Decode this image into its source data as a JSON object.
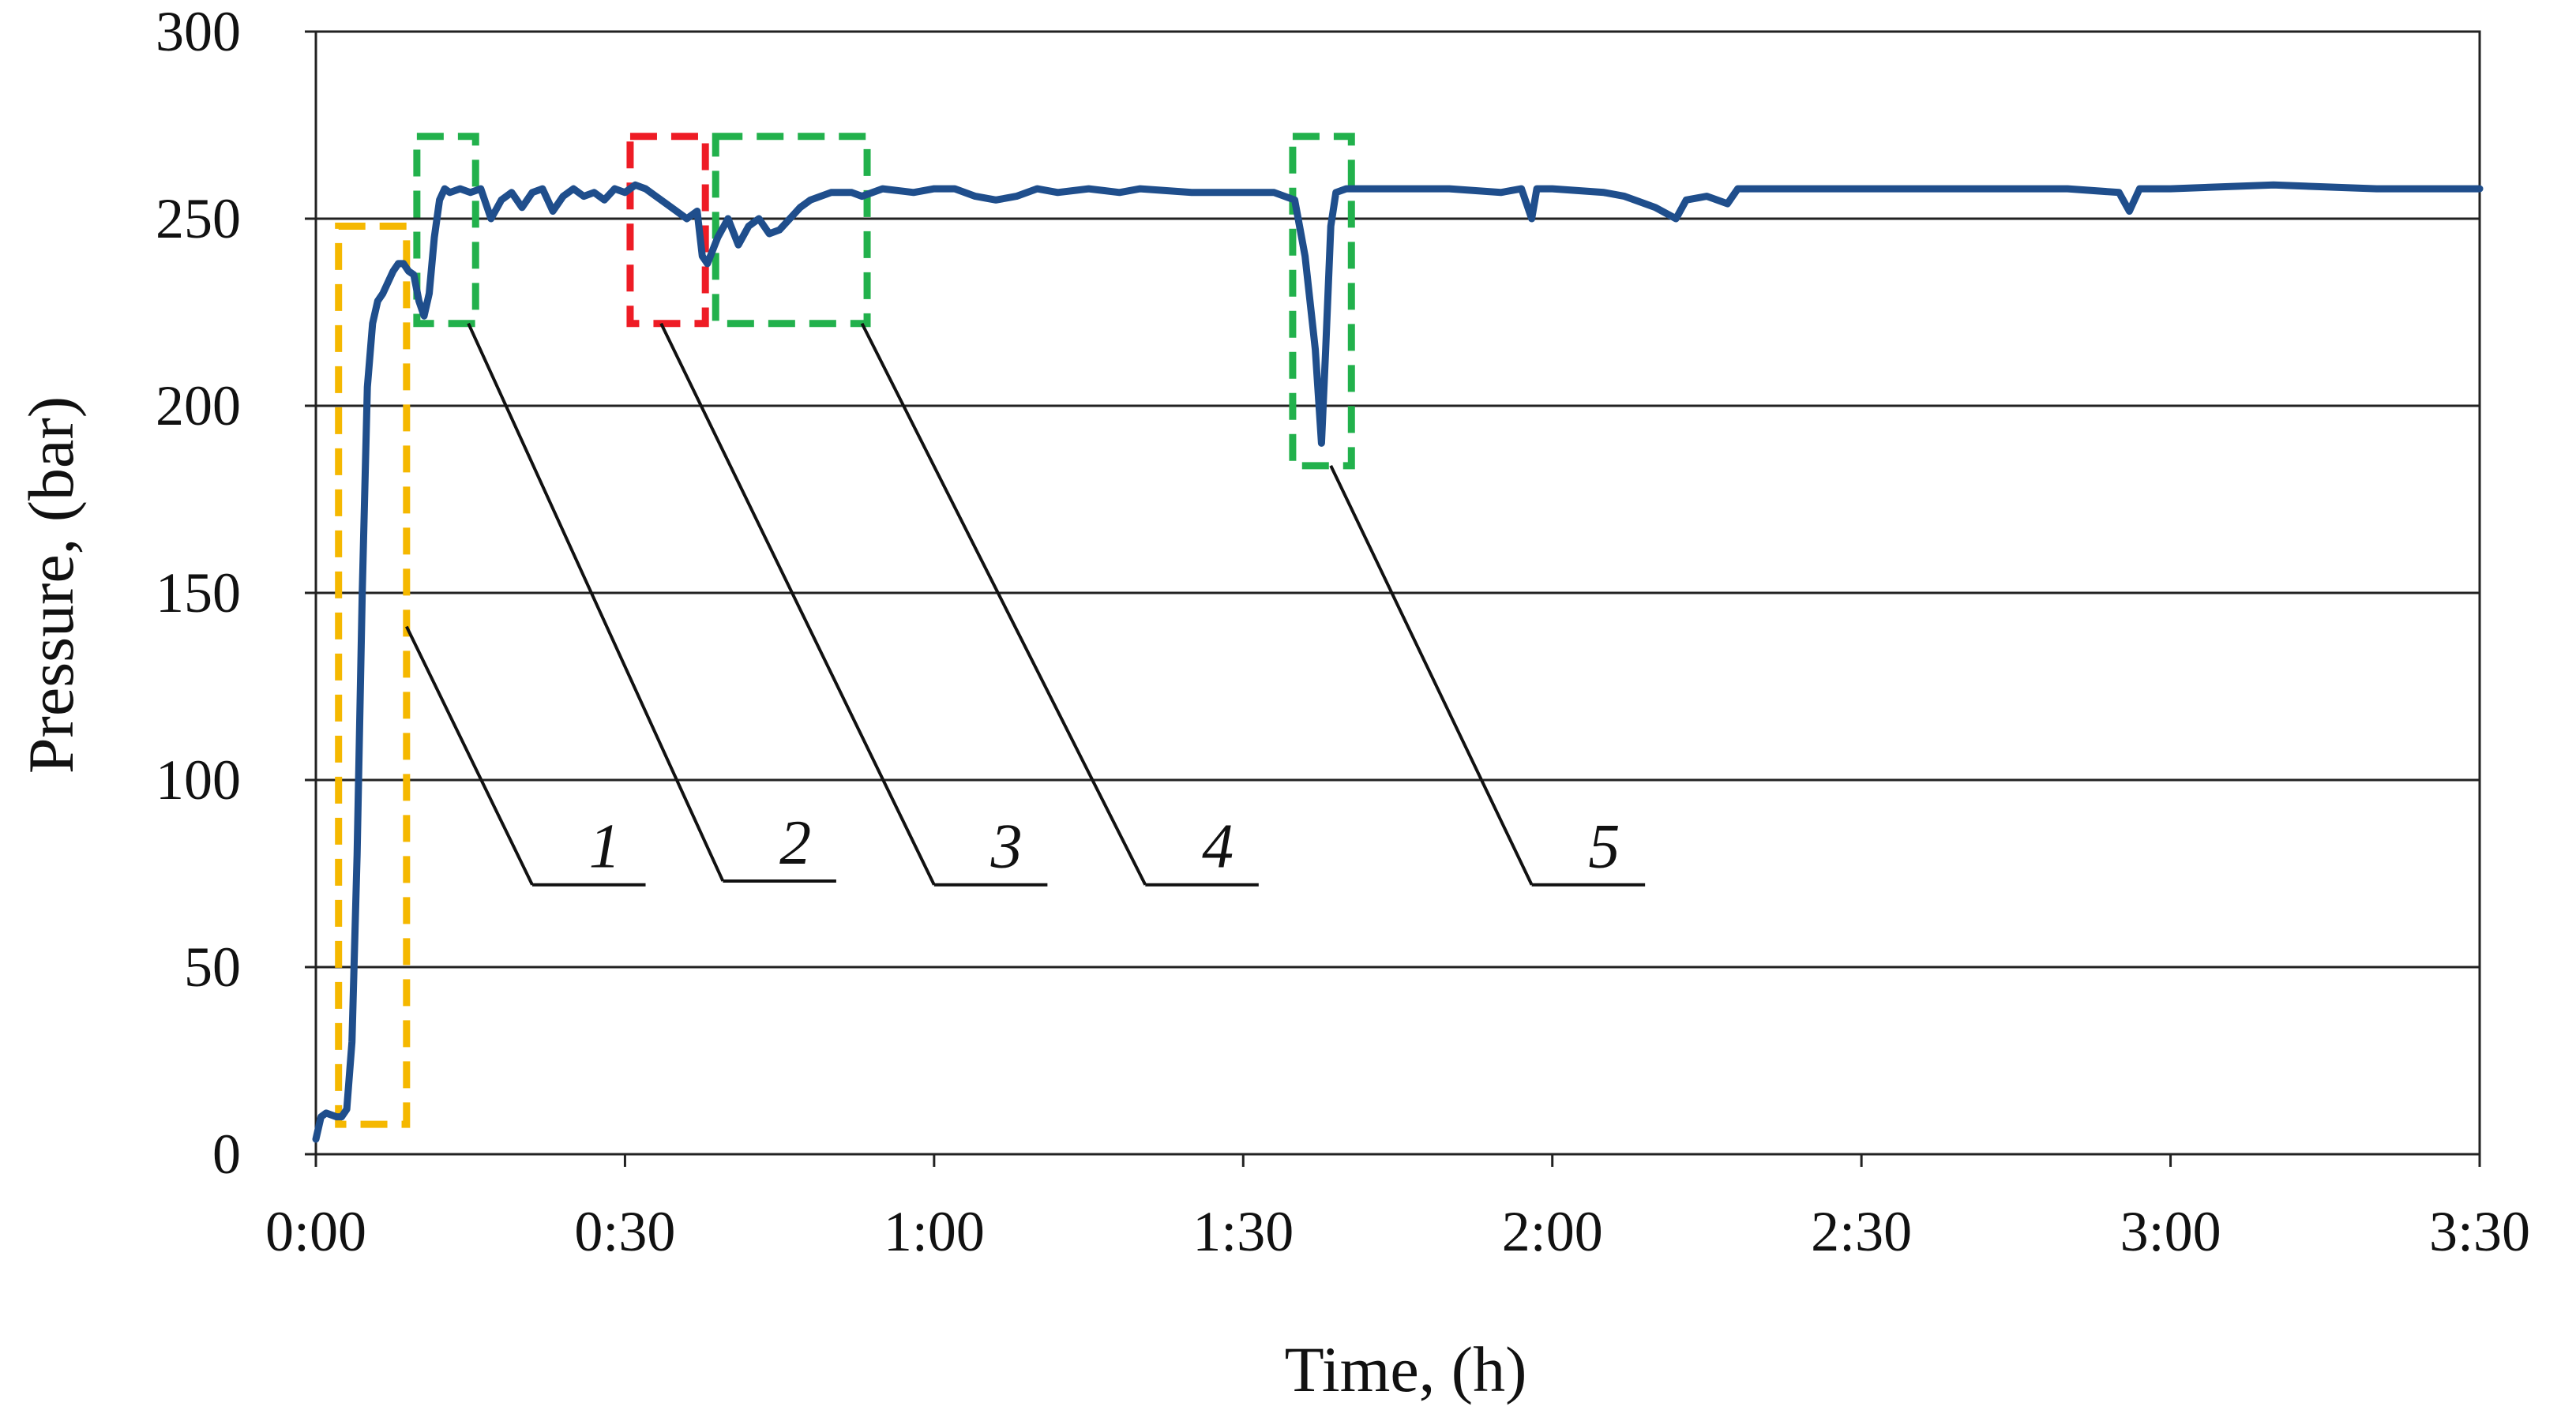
{
  "chart_data": {
    "type": "line",
    "title": "",
    "xlabel": "Time, (h)",
    "ylabel": "Pressure, (bar)",
    "xlim_minutes": [
      0,
      210
    ],
    "ylim": [
      0,
      300
    ],
    "x_tick_labels": [
      "0:00",
      "0:30",
      "1:00",
      "1:30",
      "2:00",
      "2:30",
      "3:00",
      "3:30"
    ],
    "x_tick_minutes": [
      0,
      30,
      60,
      90,
      120,
      150,
      180,
      210
    ],
    "y_ticks": [
      0,
      50,
      100,
      150,
      200,
      250,
      300
    ],
    "grid": "horizontal",
    "series": [
      {
        "name": "Pressure",
        "color": "#1f4e8c",
        "points": [
          [
            0,
            4
          ],
          [
            0.5,
            10
          ],
          [
            1,
            11
          ],
          [
            2,
            10
          ],
          [
            2.5,
            10
          ],
          [
            3,
            12
          ],
          [
            3.5,
            30
          ],
          [
            4,
            80
          ],
          [
            4.5,
            150
          ],
          [
            5,
            205
          ],
          [
            5.5,
            222
          ],
          [
            6,
            228
          ],
          [
            6.5,
            230
          ],
          [
            7,
            233
          ],
          [
            7.5,
            236
          ],
          [
            8,
            238
          ],
          [
            8.5,
            238
          ],
          [
            9,
            236
          ],
          [
            9.5,
            235
          ],
          [
            10,
            228
          ],
          [
            10.5,
            224
          ],
          [
            11,
            230
          ],
          [
            11.5,
            245
          ],
          [
            12,
            255
          ],
          [
            12.5,
            258
          ],
          [
            13,
            257
          ],
          [
            14,
            258
          ],
          [
            15,
            257
          ],
          [
            16,
            258
          ],
          [
            17,
            250
          ],
          [
            18,
            255
          ],
          [
            19,
            257
          ],
          [
            20,
            253
          ],
          [
            21,
            257
          ],
          [
            22,
            258
          ],
          [
            23,
            252
          ],
          [
            24,
            256
          ],
          [
            25,
            258
          ],
          [
            26,
            256
          ],
          [
            27,
            257
          ],
          [
            28,
            255
          ],
          [
            29,
            258
          ],
          [
            30,
            257
          ],
          [
            31,
            259
          ],
          [
            32,
            258
          ],
          [
            33,
            256
          ],
          [
            34,
            254
          ],
          [
            35,
            252
          ],
          [
            36,
            250
          ],
          [
            37,
            252
          ],
          [
            37.5,
            240
          ],
          [
            38,
            238
          ],
          [
            39,
            245
          ],
          [
            40,
            250
          ],
          [
            41,
            243
          ],
          [
            42,
            248
          ],
          [
            43,
            250
          ],
          [
            44,
            246
          ],
          [
            45,
            247
          ],
          [
            46,
            250
          ],
          [
            47,
            253
          ],
          [
            48,
            255
          ],
          [
            50,
            257
          ],
          [
            52,
            257
          ],
          [
            53,
            256
          ],
          [
            55,
            258
          ],
          [
            58,
            257
          ],
          [
            60,
            258
          ],
          [
            62,
            258
          ],
          [
            64,
            256
          ],
          [
            66,
            255
          ],
          [
            68,
            256
          ],
          [
            70,
            258
          ],
          [
            72,
            257
          ],
          [
            75,
            258
          ],
          [
            78,
            257
          ],
          [
            80,
            258
          ],
          [
            85,
            257
          ],
          [
            88,
            257
          ],
          [
            90,
            257
          ],
          [
            93,
            257
          ],
          [
            95,
            255
          ],
          [
            96,
            240
          ],
          [
            97,
            215
          ],
          [
            97.6,
            190
          ],
          [
            98,
            215
          ],
          [
            98.5,
            248
          ],
          [
            99,
            257
          ],
          [
            100,
            258
          ],
          [
            105,
            258
          ],
          [
            110,
            258
          ],
          [
            115,
            257
          ],
          [
            117,
            258
          ],
          [
            118,
            250
          ],
          [
            118.5,
            258
          ],
          [
            120,
            258
          ],
          [
            125,
            257
          ],
          [
            127,
            256
          ],
          [
            130,
            253
          ],
          [
            132,
            250
          ],
          [
            133,
            255
          ],
          [
            135,
            256
          ],
          [
            137,
            254
          ],
          [
            138,
            258
          ],
          [
            140,
            258
          ],
          [
            150,
            258
          ],
          [
            160,
            258
          ],
          [
            170,
            258
          ],
          [
            175,
            257
          ],
          [
            176,
            252
          ],
          [
            177,
            258
          ],
          [
            180,
            258
          ],
          [
            190,
            259
          ],
          [
            200,
            258
          ],
          [
            210,
            258
          ]
        ]
      }
    ],
    "highlight_boxes": [
      {
        "name": "box-1",
        "color": "#f5b800",
        "t_start": 2.2,
        "t_end": 8.8,
        "p_low": 8,
        "p_high": 248
      },
      {
        "name": "box-2",
        "color": "#22b14c",
        "t_start": 9.8,
        "t_end": 15.5,
        "p_low": 222,
        "p_high": 272
      },
      {
        "name": "box-3",
        "color": "#ee1c25",
        "t_start": 30.5,
        "t_end": 37.8,
        "p_low": 222,
        "p_high": 272
      },
      {
        "name": "box-4",
        "color": "#22b14c",
        "t_start": 38.8,
        "t_end": 53.5,
        "p_low": 222,
        "p_high": 272
      },
      {
        "name": "box-5",
        "color": "#22b14c",
        "t_start": 94.8,
        "t_end": 100.5,
        "p_low": 184,
        "p_high": 272
      }
    ],
    "callouts": [
      {
        "label": "1",
        "from_t": 8.8,
        "from_p": 141,
        "to_t": 21,
        "to_p": 72,
        "bar_end_t": 32
      },
      {
        "label": "2",
        "from_t": 14.8,
        "from_p": 222,
        "to_t": 39.5,
        "to_p": 73,
        "bar_end_t": 50.5
      },
      {
        "label": "3",
        "from_t": 33.5,
        "from_p": 222,
        "to_t": 60,
        "to_p": 72,
        "bar_end_t": 71
      },
      {
        "label": "4",
        "from_t": 53,
        "from_p": 222,
        "to_t": 80.5,
        "to_p": 72,
        "bar_end_t": 91.5
      },
      {
        "label": "5",
        "from_t": 98.5,
        "from_p": 184,
        "to_t": 118,
        "to_p": 72,
        "bar_end_t": 129
      }
    ]
  }
}
